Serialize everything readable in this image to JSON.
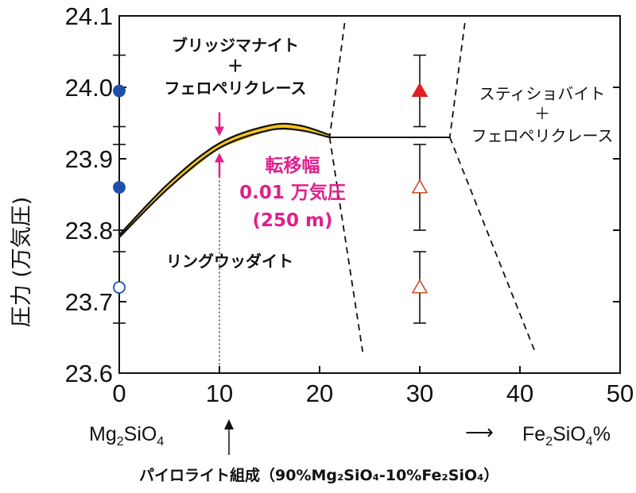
{
  "chart_data": {
    "type": "scatter",
    "title": "",
    "xlabel": "",
    "ylabel": "圧力 (万気圧)",
    "xlim": [
      0,
      50
    ],
    "ylim": [
      23.6,
      24.1
    ],
    "x_ticks": [
      "0",
      "10",
      "20",
      "30",
      "40",
      "50"
    ],
    "y_ticks": [
      "23.6",
      "23.7",
      "23.8",
      "23.9",
      "24.0",
      "24.1"
    ],
    "x_tick_values": [
      0,
      10,
      20,
      30,
      40,
      50
    ],
    "y_tick_values": [
      23.6,
      23.7,
      23.8,
      23.9,
      24.0,
      24.1
    ],
    "grid": false,
    "points_x0": [
      {
        "x": 0,
        "y": 23.995,
        "err": 0.05,
        "marker": "circle",
        "filled": true,
        "color": "#1f4fa8"
      },
      {
        "x": 0,
        "y": 23.86,
        "err": 0.06,
        "marker": "circle",
        "filled": true,
        "color": "#1f4fa8"
      },
      {
        "x": 0,
        "y": 23.72,
        "err": 0.05,
        "marker": "circle",
        "filled": false,
        "color": "#1f4fa8"
      }
    ],
    "points_x30": [
      {
        "x": 30,
        "y": 23.995,
        "err": 0.05,
        "marker": "triangle",
        "filled": true,
        "color": "#e02020"
      },
      {
        "x": 30,
        "y": 23.86,
        "err": 0.06,
        "marker": "triangle",
        "filled": false,
        "color": "#c8502a"
      },
      {
        "x": 30,
        "y": 23.72,
        "err": 0.05,
        "marker": "triangle",
        "filled": false,
        "color": "#c8502a"
      }
    ],
    "boundary_curve": [
      {
        "x": 0,
        "y": 23.79
      },
      {
        "x": 5,
        "y": 23.86
      },
      {
        "x": 10,
        "y": 23.915
      },
      {
        "x": 15,
        "y": 23.94
      },
      {
        "x": 18,
        "y": 23.94
      },
      {
        "x": 21,
        "y": 23.93
      }
    ],
    "transition_width": {
      "x": 10,
      "upper": 23.925,
      "lower": 23.915
    },
    "horizontal_boundary": [
      {
        "x": 21,
        "y": 23.93
      },
      {
        "x": 33,
        "y": 23.93
      }
    ],
    "dashed_lines": [
      [
        {
          "x": 22.5,
          "y": 24.09
        },
        {
          "x": 21,
          "y": 23.93
        }
      ],
      [
        {
          "x": 21,
          "y": 23.93
        },
        {
          "x": 24.3,
          "y": 23.63
        }
      ],
      [
        {
          "x": 34.5,
          "y": 24.09
        },
        {
          "x": 33,
          "y": 23.93
        }
      ],
      [
        {
          "x": 33,
          "y": 23.93
        },
        {
          "x": 41.5,
          "y": 23.63
        }
      ]
    ],
    "pyrolite_line_x": 10,
    "colors": {
      "curve_fill": "#f5c518",
      "magenta": "#e0208c",
      "blue": "#1f4fa8",
      "red": "#e02020",
      "open_red": "#c8502a"
    }
  },
  "labels": {
    "bridgmanite_1": "ブリッジマナイト",
    "plus_1": "＋",
    "ferropericlase_1": "フェロペリクレース",
    "stishovite": "スティショバイト",
    "plus_2": "＋",
    "ferropericlase_2": "フェロペリクレース",
    "ringwoodite": "リングウッダイト",
    "transition_1": "転移幅",
    "transition_2": "0.01 万気圧",
    "transition_3": "(250 m)",
    "mg_left": "Mg",
    "mg_sub2": "2",
    "mg_mid": "SiO",
    "mg_sub4": "4",
    "fe_left": "Fe",
    "fe_sub2": "2",
    "fe_mid": "SiO",
    "fe_sub4": "4",
    "fe_pct": "%",
    "arrow_right": "⟶",
    "pyrolite": "パイロライト組成（90%Mg₂SiO₄-10%Fe₂SiO₄）"
  }
}
